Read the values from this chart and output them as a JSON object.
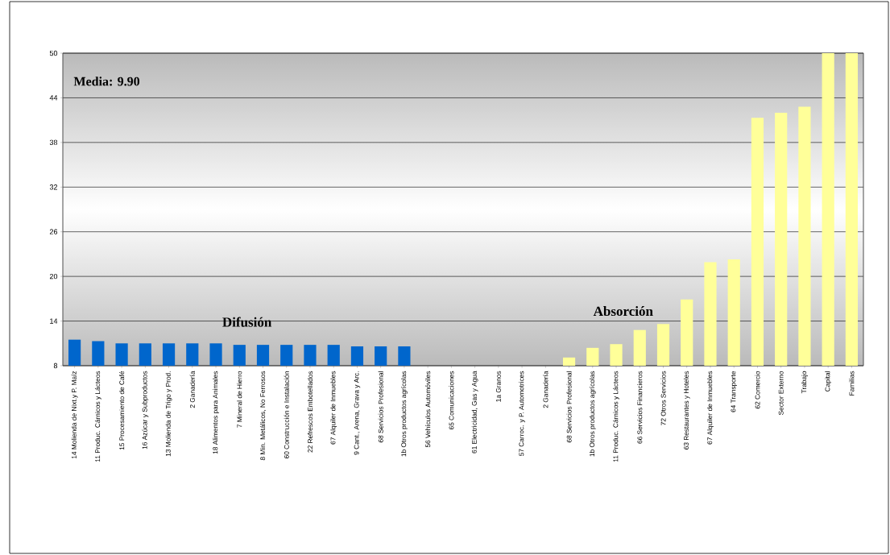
{
  "chart_data": {
    "type": "bar",
    "categories": [
      "14 Molienda de Nixt.y P. Maíz",
      "11 Produc. Cárnicos y Lácteos",
      "15 Procesamiento de Café",
      "16 Azúcar y Subproductos",
      "13 Molienda de Trigo y Prod.",
      "2 Ganadería",
      "18 Alimentos para Animales",
      "7 Mineral de Hierro",
      "8 Min. Metálicos, No Ferrosos",
      "60 Construcción e Instalación",
      "22 Refrescos Embotellados",
      "67 Alquiler de Inmuebles",
      "9 Cant., Arena, Grava y Arc.",
      "68 Servicios Profesional",
      "1b Otros productos agrícolas",
      "56 Vehículos Automóviles",
      "65 Comunicaciones",
      "61 Electricidad, Gas y Agua",
      "1a Granos",
      "57 Carroc. y P. Automotrices",
      "2 Ganadería",
      "68 Servicios Profesional",
      "1b Otros productos agrícolas",
      "11 Produc. Cárnicos y Lácteos",
      "66 Servicios Financieros",
      "72 Otros Servicios",
      "63 Restaurantes y Hoteles",
      "67 Alquiler de Inmuebles",
      "64 Transporte",
      "62 Comercio",
      "Sector Externo",
      "Trabajo",
      "Capital",
      "Familias"
    ],
    "series": [
      {
        "name": "Difusión",
        "color": "#0066cc",
        "values": [
          11.5,
          11.3,
          11.0,
          11.0,
          11.0,
          11.0,
          11.0,
          10.8,
          10.8,
          10.8,
          10.8,
          10.8,
          10.6,
          10.6,
          10.6,
          null,
          null,
          null,
          null,
          null,
          null,
          null,
          null,
          null,
          null,
          null,
          null,
          null,
          null,
          null,
          null,
          null,
          null,
          null
        ]
      },
      {
        "name": "Absorción",
        "color": "#ffff99",
        "values": [
          null,
          null,
          null,
          null,
          null,
          null,
          null,
          null,
          null,
          null,
          null,
          null,
          null,
          null,
          null,
          null,
          null,
          null,
          null,
          null,
          null,
          9.1,
          10.4,
          10.9,
          12.8,
          13.6,
          16.9,
          21.9,
          22.3,
          41.3,
          42.0,
          42.8,
          50,
          50
        ]
      }
    ],
    "ylim": [
      8,
      50
    ],
    "yticks": [
      8,
      14,
      20,
      26,
      32,
      38,
      44,
      50
    ],
    "grid": "y",
    "annotations": [
      "Media: 9.90"
    ]
  }
}
